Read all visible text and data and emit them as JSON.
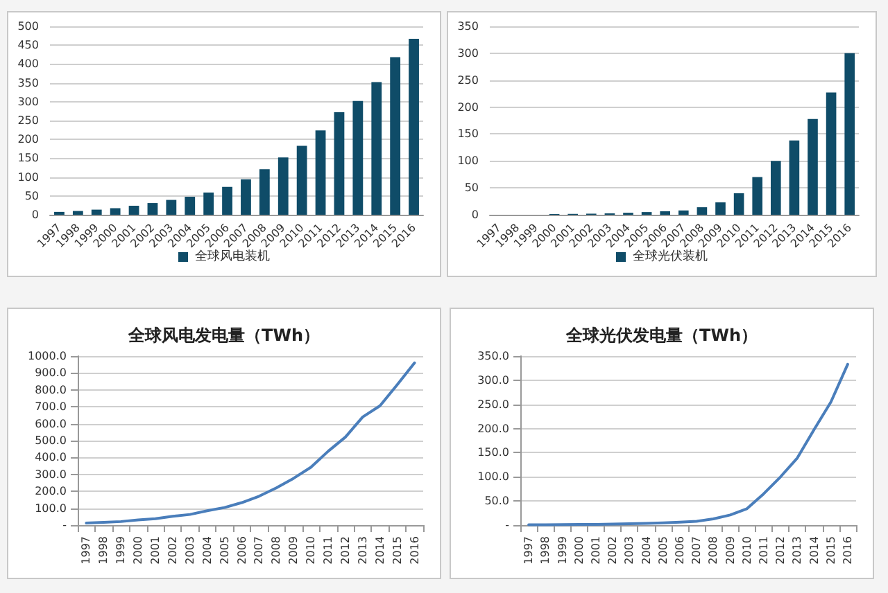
{
  "chart_data": [
    {
      "type": "bar",
      "categories": [
        "1997",
        "1998",
        "1999",
        "2000",
        "2001",
        "2002",
        "2003",
        "2004",
        "2005",
        "2006",
        "2007",
        "2008",
        "2009",
        "2010",
        "2011",
        "2012",
        "2013",
        "2014",
        "2015",
        "2016"
      ],
      "series": [
        {
          "name": "全球风电装机",
          "color": "#0f4c68",
          "values": [
            7.6,
            10,
            13.6,
            17.4,
            23.9,
            31.1,
            39.4,
            47.6,
            59,
            74,
            94,
            121,
            152,
            183,
            224,
            272,
            302,
            352,
            418,
            467
          ]
        }
      ],
      "ylim": [
        0,
        500
      ],
      "yticks": [
        0,
        50,
        100,
        150,
        200,
        250,
        300,
        350,
        400,
        450,
        500
      ],
      "grid": "y",
      "legend": "bottom"
    },
    {
      "type": "bar",
      "categories": [
        "1997",
        "1998",
        "1999",
        "2000",
        "2001",
        "2002",
        "2003",
        "2004",
        "2005",
        "2006",
        "2007",
        "2008",
        "2009",
        "2010",
        "2011",
        "2012",
        "2013",
        "2014",
        "2015",
        "2016"
      ],
      "series": [
        {
          "name": "全球光伏装机",
          "color": "#0f4c68",
          "values": [
            null,
            null,
            null,
            1.3,
            1.6,
            2,
            2.6,
            3.7,
            5,
            6.5,
            8,
            14,
            23,
            40,
            70,
            100,
            138,
            178,
            227,
            300
          ]
        }
      ],
      "ylim": [
        0,
        350
      ],
      "yticks": [
        0,
        50,
        100,
        150,
        200,
        250,
        300,
        350
      ],
      "grid": "y",
      "legend": "bottom"
    },
    {
      "type": "line",
      "title": "全球风电发电量（TWh）",
      "categories": [
        "1997",
        "1998",
        "1999",
        "2000",
        "2001",
        "2002",
        "2003",
        "2004",
        "2005",
        "2006",
        "2007",
        "2008",
        "2009",
        "2010",
        "2011",
        "2012",
        "2013",
        "2014",
        "2015",
        "2016"
      ],
      "series": [
        {
          "color": "#4a7ebb",
          "values": [
            12,
            16,
            21,
            31,
            38,
            52,
            63,
            85,
            104,
            133,
            171,
            220,
            277,
            342,
            437,
            521,
            640,
            706,
            831,
            960
          ]
        }
      ],
      "ylim": [
        0,
        1000
      ],
      "yticks": [
        {
          "value": 0,
          "label": "-"
        },
        {
          "value": 100,
          "label": "100.0"
        },
        {
          "value": 200,
          "label": "200.0"
        },
        {
          "value": 300,
          "label": "300.0"
        },
        {
          "value": 400,
          "label": "400.0"
        },
        {
          "value": 500,
          "label": "500.0"
        },
        {
          "value": 600,
          "label": "600.0"
        },
        {
          "value": 700,
          "label": "700.0"
        },
        {
          "value": 800,
          "label": "800.0"
        },
        {
          "value": 900,
          "label": "900.0"
        },
        {
          "value": 1000,
          "label": "1000.0"
        }
      ],
      "grid": "y",
      "marker": "none"
    },
    {
      "type": "line",
      "title": "全球光伏发电量（TWh）",
      "categories": [
        "1997",
        "1998",
        "1999",
        "2000",
        "2001",
        "2002",
        "2003",
        "2004",
        "2005",
        "2006",
        "2007",
        "2008",
        "2009",
        "2010",
        "2011",
        "2012",
        "2013",
        "2014",
        "2015",
        "2016"
      ],
      "series": [
        {
          "color": "#4a7ebb",
          "values": [
            0.7,
            0.8,
            1,
            1.3,
            1.6,
            2,
            2.7,
            3.5,
            4.5,
            6,
            8,
            13,
            21,
            34,
            65,
            100,
            139,
            198,
            255,
            333
          ]
        }
      ],
      "ylim": [
        0,
        350
      ],
      "yticks": [
        {
          "value": 0,
          "label": "-"
        },
        {
          "value": 50,
          "label": "50.0"
        },
        {
          "value": 100,
          "label": "100.0"
        },
        {
          "value": 150,
          "label": "150.0"
        },
        {
          "value": 200,
          "label": "200.0"
        },
        {
          "value": 250,
          "label": "250.0"
        },
        {
          "value": 300,
          "label": "300.0"
        },
        {
          "value": 350,
          "label": "350.0"
        }
      ],
      "grid": "y",
      "marker": "none"
    }
  ]
}
